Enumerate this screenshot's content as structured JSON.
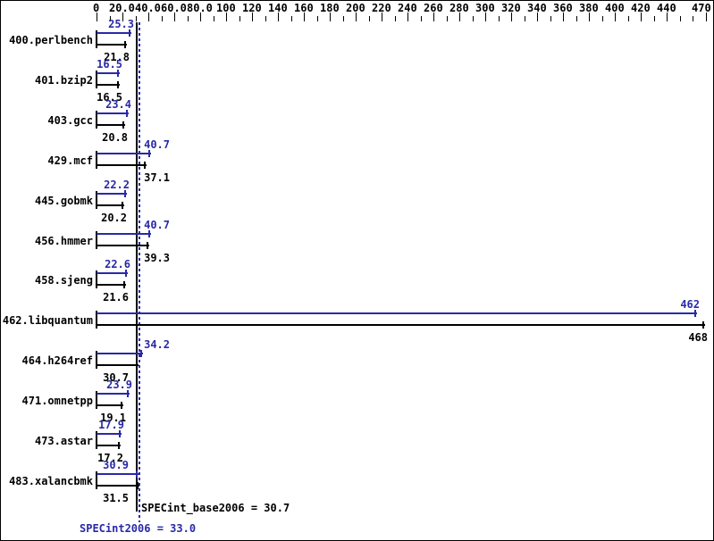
{
  "chart_data": {
    "type": "bar",
    "orientation": "horizontal",
    "title": "",
    "xlabel": "",
    "ylabel": "",
    "xlim": [
      0,
      470
    ],
    "grid": false,
    "series": [
      {
        "name": "peak (SPECint2006)",
        "color": "#2929a8"
      },
      {
        "name": "base (SPECint_base2006)",
        "color": "#000000"
      }
    ],
    "benchmarks": [
      {
        "name": "400.perlbench",
        "peak": 25.3,
        "base": 21.8
      },
      {
        "name": "401.bzip2",
        "peak": 16.5,
        "base": 16.5
      },
      {
        "name": "403.gcc",
        "peak": 23.4,
        "base": 20.8
      },
      {
        "name": "429.mcf",
        "peak": 40.7,
        "base": 37.1
      },
      {
        "name": "445.gobmk",
        "peak": 22.2,
        "base": 20.2
      },
      {
        "name": "456.hmmer",
        "peak": 40.7,
        "base": 39.3
      },
      {
        "name": "458.sjeng",
        "peak": 22.6,
        "base": 21.6
      },
      {
        "name": "462.libquantum",
        "peak": 462,
        "base": 468
      },
      {
        "name": "464.h264ref",
        "peak": 34.2,
        "base": 30.7
      },
      {
        "name": "471.omnetpp",
        "peak": 23.9,
        "base": 19.1
      },
      {
        "name": "473.astar",
        "peak": 17.9,
        "base": 17.2
      },
      {
        "name": "483.xalancbmk",
        "peak": 30.9,
        "base": 31.5
      }
    ],
    "axis_ticks": [
      {
        "value": 0,
        "label": "0"
      },
      {
        "value": 20,
        "label": "20.0"
      },
      {
        "value": 40,
        "label": "40.0"
      },
      {
        "value": 60,
        "label": "60.0"
      },
      {
        "value": 80,
        "label": "80.0"
      },
      {
        "value": 100,
        "label": "100"
      },
      {
        "value": 120,
        "label": "120"
      },
      {
        "value": 140,
        "label": "140"
      },
      {
        "value": 160,
        "label": "160"
      },
      {
        "value": 180,
        "label": "180"
      },
      {
        "value": 200,
        "label": "200"
      },
      {
        "value": 220,
        "label": "220"
      },
      {
        "value": 240,
        "label": "240"
      },
      {
        "value": 260,
        "label": "260"
      },
      {
        "value": 280,
        "label": "280"
      },
      {
        "value": 300,
        "label": "300"
      },
      {
        "value": 320,
        "label": "320"
      },
      {
        "value": 340,
        "label": "340"
      },
      {
        "value": 360,
        "label": "360"
      },
      {
        "value": 380,
        "label": "380"
      },
      {
        "value": 400,
        "label": "400"
      },
      {
        "value": 420,
        "label": "420"
      },
      {
        "value": 440,
        "label": "440"
      },
      {
        "value": 470,
        "label": "470"
      }
    ],
    "minor_tick_step": 10,
    "reference_lines": [
      {
        "name": "base_mean",
        "value": 30.7,
        "style": "solid",
        "color": "#000000"
      },
      {
        "name": "peak_mean",
        "value": 33.0,
        "style": "dotted",
        "color": "#2929a8"
      }
    ],
    "summary": {
      "base_text": "SPECint_base2006 = 30.7",
      "peak_text": "SPECint2006 = 33.0",
      "base_value": 30.7,
      "peak_value": 33.0
    },
    "colors": {
      "peak": "#2929a8",
      "base": "#000000",
      "background": "#ffffff",
      "axis": "#000000"
    }
  }
}
